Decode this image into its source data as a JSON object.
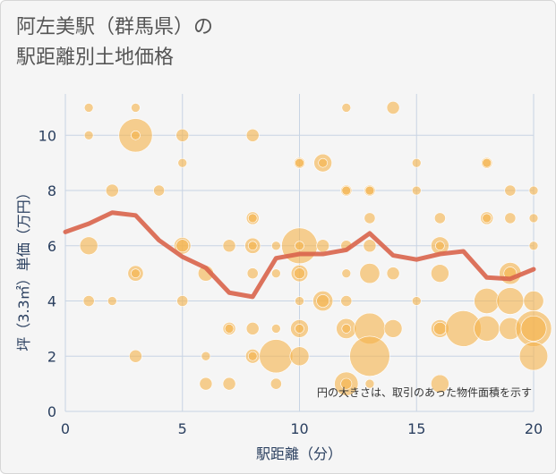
{
  "header": {
    "title_line1": "阿左美駅（群馬県）の",
    "title_line2": "駅距離別土地価格"
  },
  "colors": {
    "background": "#f5f5f5",
    "grid": "#c8d4e3",
    "bubble": "#f5b34a",
    "line": "#d9644b",
    "axis_text": "#2a3f5f"
  },
  "chart_data": {
    "type": "scatter",
    "xlabel": "駅距離（分）",
    "ylabel": "坪（3.3㎡）単価（万円）",
    "xlim": [
      0,
      20
    ],
    "ylim": [
      0,
      11.5
    ],
    "x_ticks": [
      "0",
      "5",
      "10",
      "15",
      "20"
    ],
    "y_ticks": [
      "0",
      "2",
      "4",
      "6",
      "8",
      "10"
    ],
    "x_tick_values": [
      0,
      5,
      10,
      15,
      20
    ],
    "y_tick_values": [
      0,
      2,
      4,
      6,
      8,
      10
    ],
    "grid": true,
    "note": "円の大きさは、取引のあった物件面積を示す",
    "bubble_size_unit": "relative area",
    "bubbles": [
      {
        "x": 1,
        "y": 11,
        "s": 1
      },
      {
        "x": 1,
        "y": 10,
        "s": 1
      },
      {
        "x": 1,
        "y": 6,
        "s": 4
      },
      {
        "x": 1,
        "y": 4,
        "s": 1.5
      },
      {
        "x": 2,
        "y": 8,
        "s": 2
      },
      {
        "x": 2,
        "y": 4,
        "s": 1
      },
      {
        "x": 3,
        "y": 11,
        "s": 1
      },
      {
        "x": 3,
        "y": 10,
        "s": 14
      },
      {
        "x": 3,
        "y": 10,
        "s": 1
      },
      {
        "x": 3,
        "y": 5,
        "s": 3
      },
      {
        "x": 3,
        "y": 5,
        "s": 1
      },
      {
        "x": 3,
        "y": 2,
        "s": 2
      },
      {
        "x": 4,
        "y": 8,
        "s": 1.5
      },
      {
        "x": 5,
        "y": 10,
        "s": 2
      },
      {
        "x": 5,
        "y": 9,
        "s": 1
      },
      {
        "x": 5,
        "y": 6,
        "s": 3.5
      },
      {
        "x": 5,
        "y": 6,
        "s": 2
      },
      {
        "x": 5,
        "y": 4,
        "s": 1.5
      },
      {
        "x": 6,
        "y": 5,
        "s": 3
      },
      {
        "x": 6,
        "y": 2,
        "s": 1
      },
      {
        "x": 6,
        "y": 1,
        "s": 2
      },
      {
        "x": 7,
        "y": 6,
        "s": 2
      },
      {
        "x": 7,
        "y": 3,
        "s": 2
      },
      {
        "x": 7,
        "y": 3,
        "s": 1
      },
      {
        "x": 7,
        "y": 1,
        "s": 2
      },
      {
        "x": 8,
        "y": 10,
        "s": 2
      },
      {
        "x": 8,
        "y": 7,
        "s": 2
      },
      {
        "x": 8,
        "y": 7,
        "s": 1
      },
      {
        "x": 8,
        "y": 6,
        "s": 3
      },
      {
        "x": 8,
        "y": 6,
        "s": 1
      },
      {
        "x": 8,
        "y": 5,
        "s": 1.5
      },
      {
        "x": 8,
        "y": 3,
        "s": 2
      },
      {
        "x": 8,
        "y": 2,
        "s": 2.5
      },
      {
        "x": 8,
        "y": 2,
        "s": 1
      },
      {
        "x": 9,
        "y": 6,
        "s": 1
      },
      {
        "x": 9,
        "y": 5,
        "s": 1
      },
      {
        "x": 9,
        "y": 3,
        "s": 1
      },
      {
        "x": 9,
        "y": 2,
        "s": 14
      },
      {
        "x": 9,
        "y": 1,
        "s": 1.5
      },
      {
        "x": 10,
        "y": 9,
        "s": 1.5
      },
      {
        "x": 10,
        "y": 9,
        "s": 1
      },
      {
        "x": 10,
        "y": 6,
        "s": 16
      },
      {
        "x": 10,
        "y": 6,
        "s": 1
      },
      {
        "x": 10,
        "y": 5,
        "s": 3.5
      },
      {
        "x": 10,
        "y": 5,
        "s": 1.5
      },
      {
        "x": 10,
        "y": 4,
        "s": 1
      },
      {
        "x": 10,
        "y": 3,
        "s": 4
      },
      {
        "x": 10,
        "y": 3,
        "s": 1
      },
      {
        "x": 10,
        "y": 2,
        "s": 4.5
      },
      {
        "x": 11,
        "y": 9,
        "s": 4
      },
      {
        "x": 11,
        "y": 9,
        "s": 1
      },
      {
        "x": 11,
        "y": 6,
        "s": 2
      },
      {
        "x": 11,
        "y": 4,
        "s": 5
      },
      {
        "x": 11,
        "y": 4,
        "s": 2
      },
      {
        "x": 12,
        "y": 11,
        "s": 1
      },
      {
        "x": 12,
        "y": 8,
        "s": 1.5
      },
      {
        "x": 12,
        "y": 8,
        "s": 1
      },
      {
        "x": 12,
        "y": 6,
        "s": 1.5
      },
      {
        "x": 12,
        "y": 5,
        "s": 1
      },
      {
        "x": 12,
        "y": 4,
        "s": 1.5
      },
      {
        "x": 12,
        "y": 3,
        "s": 5
      },
      {
        "x": 12,
        "y": 3,
        "s": 1
      },
      {
        "x": 12,
        "y": 1,
        "s": 7
      },
      {
        "x": 12,
        "y": 1,
        "s": 1.5
      },
      {
        "x": 13,
        "y": 8,
        "s": 1.5
      },
      {
        "x": 13,
        "y": 8,
        "s": 1
      },
      {
        "x": 13,
        "y": 7,
        "s": 1.5
      },
      {
        "x": 13,
        "y": 6,
        "s": 2
      },
      {
        "x": 13,
        "y": 5,
        "s": 5
      },
      {
        "x": 13,
        "y": 3,
        "s": 12
      },
      {
        "x": 13,
        "y": 2,
        "s": 20
      },
      {
        "x": 13,
        "y": 1,
        "s": 1
      },
      {
        "x": 14,
        "y": 11,
        "s": 2
      },
      {
        "x": 14,
        "y": 5,
        "s": 2
      },
      {
        "x": 14,
        "y": 3,
        "s": 4
      },
      {
        "x": 15,
        "y": 9,
        "s": 1
      },
      {
        "x": 15,
        "y": 8,
        "s": 1
      },
      {
        "x": 15,
        "y": 4,
        "s": 1
      },
      {
        "x": 16,
        "y": 7,
        "s": 1.5
      },
      {
        "x": 16,
        "y": 6,
        "s": 4
      },
      {
        "x": 16,
        "y": 6,
        "s": 1
      },
      {
        "x": 16,
        "y": 5,
        "s": 4
      },
      {
        "x": 16,
        "y": 3,
        "s": 4
      },
      {
        "x": 16,
        "y": 3,
        "s": 2
      },
      {
        "x": 16,
        "y": 1,
        "s": 4
      },
      {
        "x": 17,
        "y": 3,
        "s": 16
      },
      {
        "x": 18,
        "y": 9,
        "s": 1.5
      },
      {
        "x": 18,
        "y": 9,
        "s": 1
      },
      {
        "x": 18,
        "y": 7,
        "s": 2
      },
      {
        "x": 18,
        "y": 7,
        "s": 1
      },
      {
        "x": 18,
        "y": 4,
        "s": 8
      },
      {
        "x": 18,
        "y": 3,
        "s": 8
      },
      {
        "x": 19,
        "y": 8,
        "s": 1.5
      },
      {
        "x": 19,
        "y": 7,
        "s": 1.5
      },
      {
        "x": 19,
        "y": 5,
        "s": 6
      },
      {
        "x": 19,
        "y": 5,
        "s": 2
      },
      {
        "x": 19,
        "y": 4,
        "s": 9
      },
      {
        "x": 19,
        "y": 3,
        "s": 6
      },
      {
        "x": 20,
        "y": 8,
        "s": 1
      },
      {
        "x": 20,
        "y": 7,
        "s": 1
      },
      {
        "x": 20,
        "y": 6,
        "s": 1
      },
      {
        "x": 20,
        "y": 4,
        "s": 5
      },
      {
        "x": 20,
        "y": 3,
        "s": 16
      },
      {
        "x": 20,
        "y": 3,
        "s": 8
      },
      {
        "x": 20,
        "y": 2,
        "s": 10
      }
    ],
    "series": [
      {
        "x": [
          0,
          1,
          2,
          3,
          4,
          5,
          6,
          7,
          8,
          9,
          10,
          11,
          12,
          13,
          14,
          15,
          16,
          17,
          18,
          19,
          20
        ],
        "values": [
          6.5,
          6.8,
          7.2,
          7.1,
          6.2,
          5.6,
          5.2,
          4.3,
          4.15,
          5.55,
          5.7,
          5.7,
          5.85,
          6.45,
          5.65,
          5.5,
          5.7,
          5.8,
          4.85,
          4.8,
          5.15
        ]
      }
    ]
  }
}
